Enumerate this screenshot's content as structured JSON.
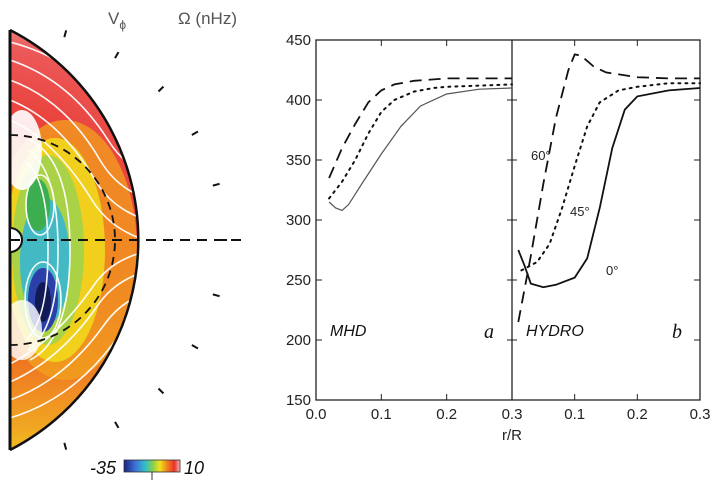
{
  "header": {
    "vphi_label": "V",
    "vphi_sub": "ϕ",
    "omega_label": "Ω (nHz)"
  },
  "colorbar": {
    "min_label": "-35",
    "max_label": "10"
  },
  "colors": {
    "red": "#e8322a",
    "orange": "#f07c1e",
    "yellow": "#f3e21a",
    "green": "#3cae50",
    "cyan": "#49c0d8",
    "blue": "#2a3fa8",
    "navy": "#111a55"
  },
  "chart_data": {
    "type": "line",
    "xlabel": "r/R",
    "xlim": [
      0.0,
      0.3
    ],
    "ylim": [
      150,
      450
    ],
    "yticks": [
      "150",
      "200",
      "250",
      "300",
      "350",
      "400",
      "450"
    ],
    "xticks": [
      "0.0",
      "0.1",
      "0.2",
      "0.3"
    ],
    "panels": [
      {
        "tag": "MHD",
        "letter": "a",
        "series": [
          {
            "style": "dashed",
            "x": [
              0.02,
              0.04,
              0.06,
              0.08,
              0.1,
              0.12,
              0.15,
              0.2,
              0.25,
              0.3
            ],
            "y": [
              335,
              360,
              380,
              398,
              408,
              413,
              416,
              418,
              418,
              418
            ]
          },
          {
            "style": "dotted",
            "x": [
              0.02,
              0.04,
              0.06,
              0.08,
              0.1,
              0.12,
              0.15,
              0.18,
              0.2,
              0.25,
              0.3
            ],
            "y": [
              318,
              332,
              350,
              372,
              390,
              400,
              407,
              410,
              411,
              412,
              413
            ]
          },
          {
            "style": "solid",
            "x": [
              0.02,
              0.03,
              0.04,
              0.05,
              0.07,
              0.1,
              0.13,
              0.16,
              0.2,
              0.25,
              0.3
            ],
            "y": [
              315,
              310,
              308,
              313,
              330,
              355,
              378,
              395,
              405,
              409,
              410
            ]
          }
        ]
      },
      {
        "tag": "HYDRO",
        "letter": "b",
        "series": [
          {
            "style": "dashed",
            "label": "60°",
            "x": [
              0.01,
              0.03,
              0.05,
              0.07,
              0.09,
              0.1,
              0.11,
              0.13,
              0.15,
              0.2,
              0.25,
              0.3
            ],
            "y": [
              215,
              270,
              330,
              385,
              425,
              438,
              437,
              428,
              423,
              419,
              418,
              418
            ]
          },
          {
            "style": "dotted",
            "label": "45°",
            "x": [
              0.015,
              0.04,
              0.06,
              0.08,
              0.1,
              0.12,
              0.14,
              0.17,
              0.2,
              0.25,
              0.3
            ],
            "y": [
              258,
              265,
              280,
              310,
              345,
              378,
              398,
              408,
              411,
              414,
              414
            ]
          },
          {
            "style": "solid",
            "label": "0°",
            "x": [
              0.01,
              0.02,
              0.03,
              0.05,
              0.07,
              0.1,
              0.12,
              0.14,
              0.16,
              0.18,
              0.2,
              0.25,
              0.3
            ],
            "y": [
              275,
              262,
              247,
              244,
              246,
              252,
              268,
              310,
              360,
              392,
              403,
              408,
              410
            ]
          }
        ]
      }
    ]
  }
}
